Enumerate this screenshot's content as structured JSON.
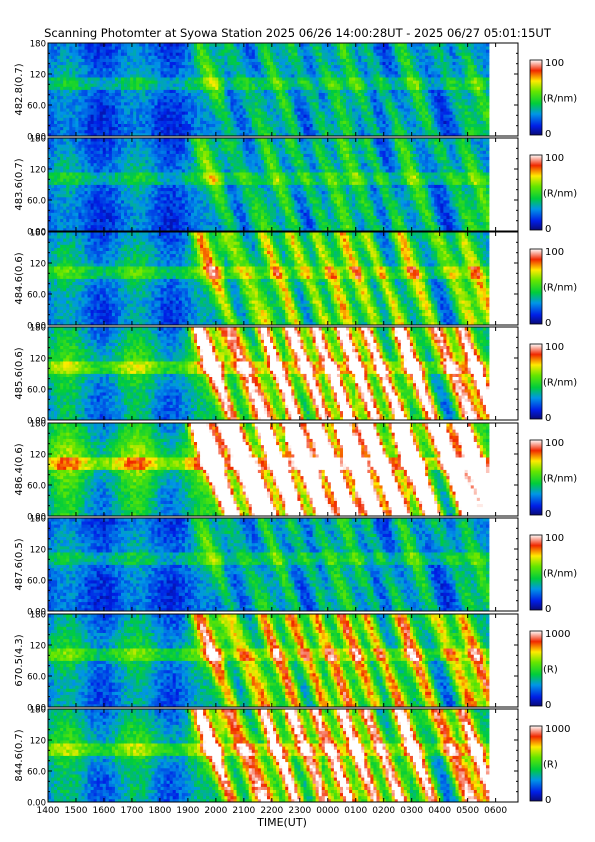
{
  "chart_data": {
    "type": "heatmap",
    "title": "Scanning Photomter at Syowa Station  2025 06/26 14:00:28UT - 2025 06/27 05:01:15UT",
    "xlabel": "TIME(UT)",
    "x_ticks": [
      "1400",
      "1500",
      "1600",
      "1700",
      "1800",
      "1900",
      "2000",
      "2100",
      "2200",
      "2300",
      "0000",
      "0100",
      "0200",
      "0300",
      "0400",
      "0500",
      "0600"
    ],
    "y_ticks": [
      "0.00",
      "60.0",
      "120",
      "180"
    ],
    "panels": [
      {
        "ylabel": "482.8(0.7)",
        "unit": "(R/nm)",
        "cmin": "0",
        "cmax": "100",
        "scale": 1.0
      },
      {
        "ylabel": "483.6(0.7)",
        "unit": "(R/nm)",
        "cmin": "0",
        "cmax": "100",
        "scale": 1.05
      },
      {
        "ylabel": "484.6(0.6)",
        "unit": "(R/nm)",
        "cmin": "0",
        "cmax": "100",
        "scale": 1.25
      },
      {
        "ylabel": "485.6(0.6)",
        "unit": "(R/nm)",
        "cmin": "0",
        "cmax": "100",
        "scale": 1.55
      },
      {
        "ylabel": "486.4(0.6)",
        "unit": "(R/nm)",
        "cmin": "0",
        "cmax": "100",
        "scale": 1.9
      },
      {
        "ylabel": "487.6(0.5)",
        "unit": "(R/nm)",
        "cmin": "0",
        "cmax": "100",
        "scale": 1.0
      },
      {
        "ylabel": "670.5(4.3)",
        "unit": "(R)",
        "cmin": "0",
        "cmax": "1000",
        "scale": 1.35
      },
      {
        "ylabel": "844.6(0.7)",
        "unit": "(R)",
        "cmin": "0",
        "cmax": "1000",
        "scale": 1.5
      }
    ]
  }
}
